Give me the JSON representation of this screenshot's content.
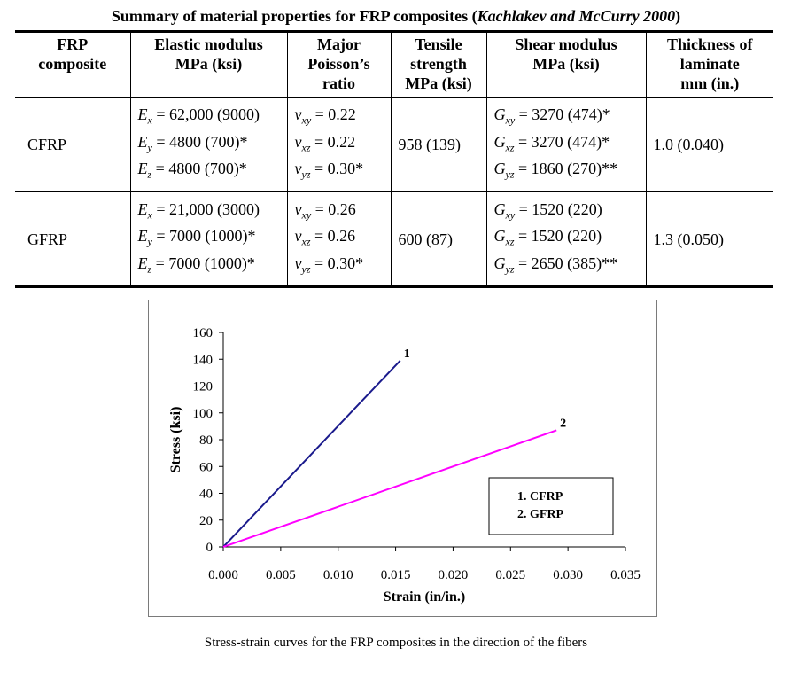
{
  "title": {
    "main": "Summary of material properties for FRP composites (",
    "cite": "Kachlakev and McCurry 2000",
    "close": ")"
  },
  "table": {
    "headers": [
      [
        "FRP",
        "composite"
      ],
      [
        "Elastic modulus",
        "MPa (ksi)"
      ],
      [
        "Major",
        "Poisson’s",
        "ratio"
      ],
      [
        "Tensile",
        "strength",
        "MPa (ksi)"
      ],
      [
        "Shear modulus",
        "MPa (ksi)"
      ],
      [
        "Thickness of",
        "laminate",
        "mm (in.)"
      ]
    ],
    "rows": [
      {
        "composite": "CFRP",
        "elastic": [
          {
            "sym": "E",
            "sub": "x",
            "val": " = 62,000 (9000)"
          },
          {
            "sym": "E",
            "sub": "y",
            "val": " = 4800 (700)*"
          },
          {
            "sym": "E",
            "sub": "z",
            "val": " = 4800 (700)*"
          }
        ],
        "poisson": [
          {
            "sym": "ν",
            "sub": "xy",
            "val": " = 0.22"
          },
          {
            "sym": "ν",
            "sub": "xz",
            "val": " = 0.22"
          },
          {
            "sym": "ν",
            "sub": "yz",
            "val": " = 0.30*"
          }
        ],
        "tensile": "958 (139)",
        "shear": [
          {
            "sym": "G",
            "sub": "xy",
            "val": " = 3270 (474)*"
          },
          {
            "sym": "G",
            "sub": "xz",
            "val": " = 3270 (474)*"
          },
          {
            "sym": "G",
            "sub": "yz",
            "val": " = 1860 (270)**"
          }
        ],
        "thickness": "1.0 (0.040)"
      },
      {
        "composite": "GFRP",
        "elastic": [
          {
            "sym": "E",
            "sub": "x",
            "val": " = 21,000 (3000)"
          },
          {
            "sym": "E",
            "sub": "y",
            "val": " = 7000 (1000)*"
          },
          {
            "sym": "E",
            "sub": "z",
            "val": " = 7000 (1000)*"
          }
        ],
        "poisson": [
          {
            "sym": "ν",
            "sub": "xy",
            "val": " = 0.26"
          },
          {
            "sym": "ν",
            "sub": "xz",
            "val": " = 0.26"
          },
          {
            "sym": "ν",
            "sub": "yz",
            "val": " = 0.30*"
          }
        ],
        "tensile": "600 (87)",
        "shear": [
          {
            "sym": "G",
            "sub": "xy",
            "val": " = 1520 (220)"
          },
          {
            "sym": "G",
            "sub": "xz",
            "val": " = 1520 (220)"
          },
          {
            "sym": "G",
            "sub": "yz",
            "val": " = 2650 (385)**"
          }
        ],
        "thickness": "1.3 (0.050)"
      }
    ]
  },
  "chart_data": {
    "type": "line",
    "xlabel": "Strain (in/in.)",
    "ylabel": "Stress (ksi)",
    "xlim": [
      0,
      0.035
    ],
    "ylim": [
      0,
      160
    ],
    "xticks": [
      "0.000",
      "0.005",
      "0.010",
      "0.015",
      "0.020",
      "0.025",
      "0.030",
      "0.035"
    ],
    "yticks": [
      "0",
      "20",
      "40",
      "60",
      "80",
      "100",
      "120",
      "140",
      "160"
    ],
    "grid": false,
    "legend_position": "bottom-right",
    "legend": [
      "1.   CFRP",
      "2.   GFRP"
    ],
    "series": [
      {
        "label": "1",
        "color": "#1a1a8c",
        "x": [
          0,
          0.0154
        ],
        "y": [
          0,
          139
        ]
      },
      {
        "label": "2",
        "color": "#ff00ff",
        "x": [
          0,
          0.029
        ],
        "y": [
          0,
          87
        ]
      }
    ]
  },
  "caption": "Stress-strain curves for the FRP composites in the direction of the fibers"
}
